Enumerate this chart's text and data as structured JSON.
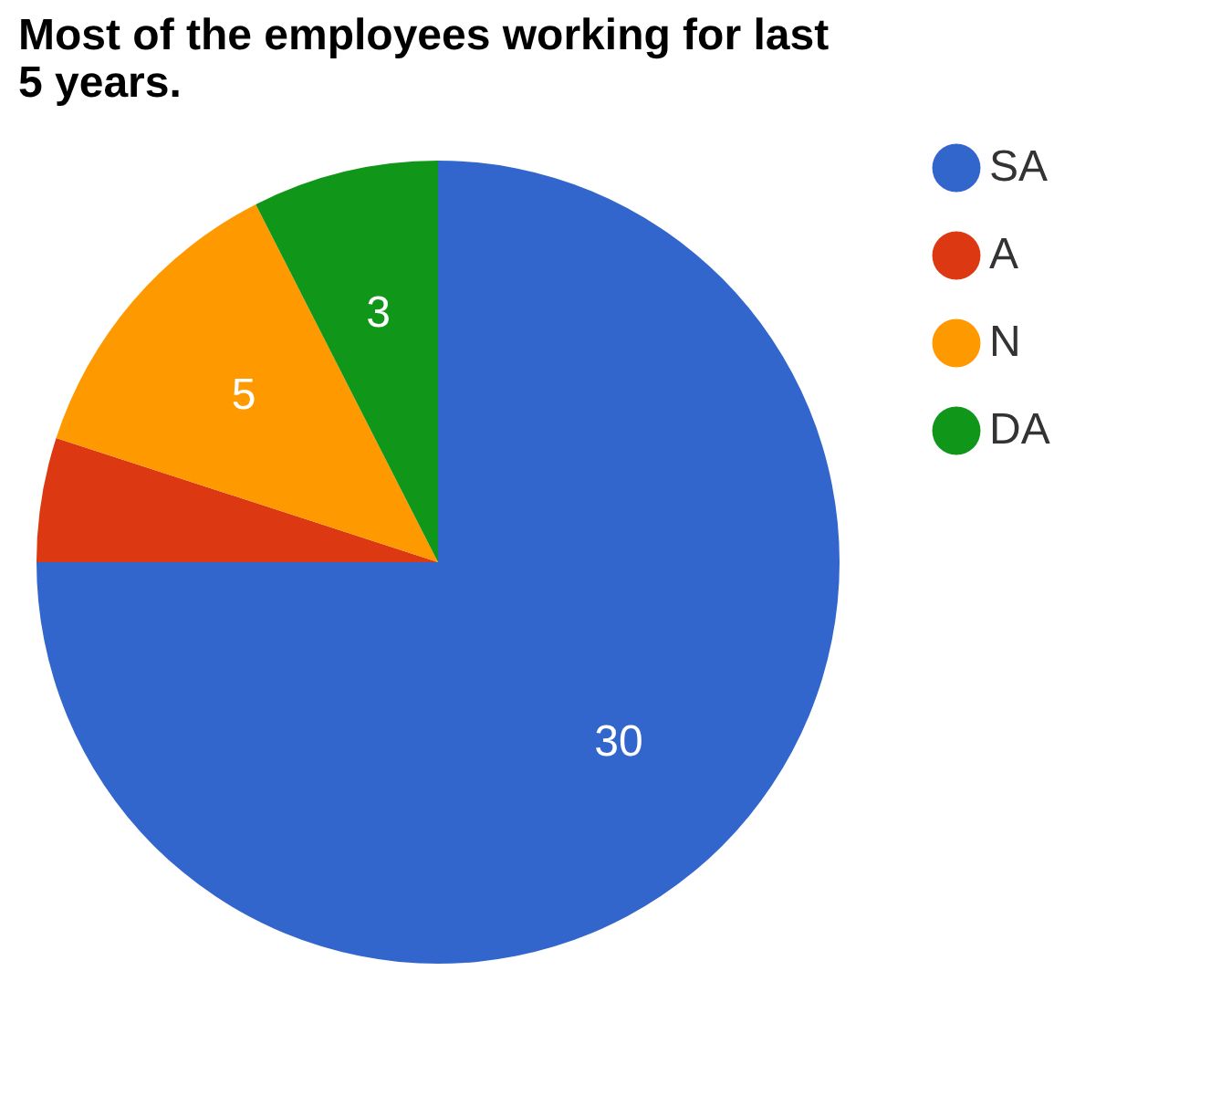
{
  "chart_data": {
    "type": "pie",
    "title": "Most of the employees working for last 5 years.",
    "categories": [
      "SA",
      "A",
      "N",
      "DA"
    ],
    "values": [
      30,
      2,
      5,
      3
    ],
    "colors": [
      "#3366cc",
      "#dc3912",
      "#ff9900",
      "#109618"
    ],
    "value_labels": [
      "30",
      null,
      "5",
      "3"
    ],
    "legend": "right"
  }
}
